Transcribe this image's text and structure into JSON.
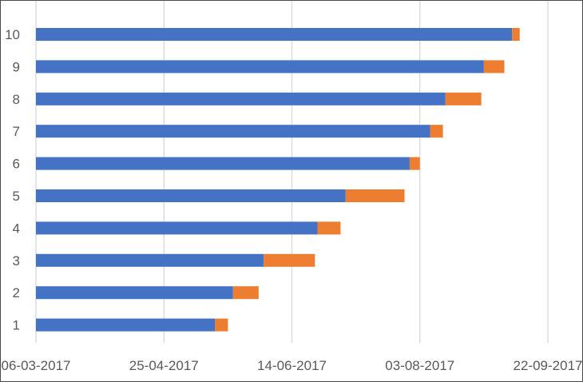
{
  "chart_data": {
    "type": "bar",
    "orientation": "horizontal",
    "stacked": true,
    "categories": [
      "1",
      "2",
      "3",
      "4",
      "5",
      "6",
      "7",
      "8",
      "9",
      "10"
    ],
    "series": [
      {
        "color": "#4472c4",
        "values": [
          "2017-05-15",
          "2017-05-22",
          "2017-06-03",
          "2017-06-24",
          "2017-07-05",
          "2017-07-30",
          "2017-08-07",
          "2017-08-13",
          "2017-08-28",
          "2017-09-08"
        ]
      },
      {
        "color": "#ed7d31",
        "duration_days": [
          5,
          10,
          20,
          9,
          23,
          4,
          5,
          14,
          8,
          3
        ]
      }
    ],
    "x_axis": {
      "type": "date",
      "min": "2017-03-06",
      "max": "2017-09-22",
      "ticks": [
        "06-03-2017",
        "25-04-2017",
        "14-06-2017",
        "03-08-2017",
        "22-09-2017"
      ]
    },
    "grid": true,
    "legend": "none"
  }
}
